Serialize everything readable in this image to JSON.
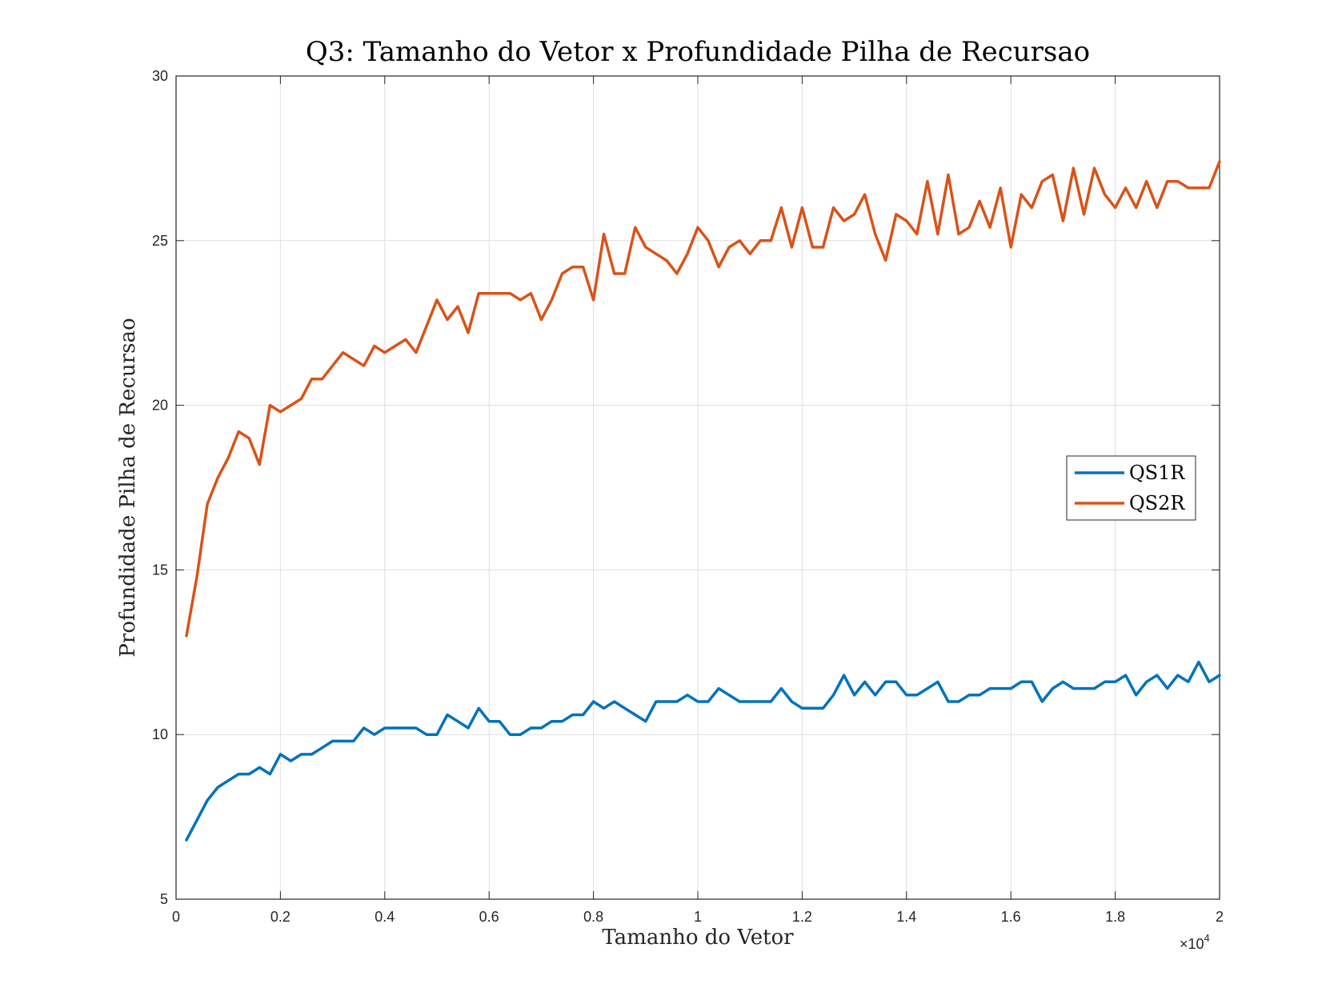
{
  "chart_data": {
    "type": "line",
    "title": "Q3: Tamanho do Vetor x Profundidade Pilha de Recursao",
    "xlabel": "Tamanho do Vetor",
    "ylabel": "Profundidade Pilha de Recursao",
    "xlim": [
      0,
      20000
    ],
    "ylim": [
      5,
      30
    ],
    "x_exponent_label": "×10",
    "x_exponent_power": "4",
    "x_ticks": [
      0,
      2000,
      4000,
      6000,
      8000,
      10000,
      12000,
      14000,
      16000,
      18000,
      20000
    ],
    "x_tick_labels": [
      "0",
      "0.2",
      "0.4",
      "0.6",
      "0.8",
      "1",
      "1.2",
      "1.4",
      "1.6",
      "1.8",
      "2"
    ],
    "y_ticks": [
      5,
      10,
      15,
      20,
      25,
      30
    ],
    "y_tick_labels": [
      "5",
      "10",
      "15",
      "20",
      "25",
      "30"
    ],
    "grid": true,
    "legend_position": "right",
    "x": [
      200,
      400,
      600,
      800,
      1000,
      1200,
      1400,
      1600,
      1800,
      2000,
      2200,
      2400,
      2600,
      2800,
      3000,
      3200,
      3400,
      3600,
      3800,
      4000,
      4200,
      4400,
      4600,
      4800,
      5000,
      5200,
      5400,
      5600,
      5800,
      6000,
      6200,
      6400,
      6600,
      6800,
      7000,
      7200,
      7400,
      7600,
      7800,
      8000,
      8200,
      8400,
      8600,
      8800,
      9000,
      9200,
      9400,
      9600,
      9800,
      10000,
      10200,
      10400,
      10600,
      10800,
      11000,
      11200,
      11400,
      11600,
      11800,
      12000,
      12200,
      12400,
      12600,
      12800,
      13000,
      13200,
      13400,
      13600,
      13800,
      14000,
      14200,
      14400,
      14600,
      14800,
      15000,
      15200,
      15400,
      15600,
      15800,
      16000,
      16200,
      16400,
      16600,
      16800,
      17000,
      17200,
      17400,
      17600,
      17800,
      18000,
      18200,
      18400,
      18600,
      18800,
      19000,
      19200,
      19400,
      19600,
      19800,
      20000
    ],
    "series": [
      {
        "name": "QS1R",
        "color": "#0072BD",
        "values": [
          6.8,
          7.4,
          8.0,
          8.4,
          8.6,
          8.8,
          8.8,
          9.0,
          8.8,
          9.4,
          9.2,
          9.4,
          9.4,
          9.6,
          9.8,
          9.8,
          9.8,
          10.2,
          10.0,
          10.2,
          10.2,
          10.2,
          10.2,
          10.0,
          10.0,
          10.6,
          10.4,
          10.2,
          10.8,
          10.4,
          10.4,
          10.0,
          10.0,
          10.2,
          10.2,
          10.4,
          10.4,
          10.6,
          10.6,
          11.0,
          10.8,
          11.0,
          10.8,
          10.6,
          10.4,
          11.0,
          11.0,
          11.0,
          11.2,
          11.0,
          11.0,
          11.4,
          11.2,
          11.0,
          11.0,
          11.0,
          11.0,
          11.4,
          11.0,
          10.8,
          10.8,
          10.8,
          11.2,
          11.8,
          11.2,
          11.6,
          11.2,
          11.6,
          11.6,
          11.2,
          11.2,
          11.4,
          11.6,
          11.0,
          11.0,
          11.2,
          11.2,
          11.4,
          11.4,
          11.4,
          11.6,
          11.6,
          11.0,
          11.4,
          11.6,
          11.4,
          11.4,
          11.4,
          11.6,
          11.6,
          11.8,
          11.2,
          11.6,
          11.8,
          11.4,
          11.8,
          11.6,
          12.2,
          11.6,
          11.8
        ]
      },
      {
        "name": "QS2R",
        "color": "#D95319",
        "values": [
          13.0,
          14.8,
          17.0,
          17.8,
          18.4,
          19.2,
          19.0,
          18.2,
          20.0,
          19.8,
          20.0,
          20.2,
          20.8,
          20.8,
          21.2,
          21.6,
          21.4,
          21.2,
          21.8,
          21.6,
          21.8,
          22.0,
          21.6,
          22.4,
          23.2,
          22.6,
          23.0,
          22.2,
          23.4,
          23.4,
          23.4,
          23.4,
          23.2,
          23.4,
          22.6,
          23.2,
          24.0,
          24.2,
          24.2,
          23.2,
          25.2,
          24.0,
          24.0,
          25.4,
          24.8,
          24.6,
          24.4,
          24.0,
          24.6,
          25.4,
          25.0,
          24.2,
          24.8,
          25.0,
          24.6,
          25.0,
          25.0,
          26.0,
          24.8,
          26.0,
          24.8,
          24.8,
          26.0,
          25.6,
          25.8,
          26.4,
          25.2,
          24.4,
          25.8,
          25.6,
          25.2,
          26.8,
          25.2,
          27.0,
          25.2,
          25.4,
          26.2,
          25.4,
          26.6,
          24.8,
          26.4,
          26.0,
          26.8,
          27.0,
          25.6,
          27.2,
          25.8,
          27.2,
          26.4,
          26.0,
          26.6,
          26.0,
          26.8,
          26.0,
          26.8,
          26.8,
          26.6,
          26.6,
          26.6,
          27.4
        ]
      }
    ]
  }
}
